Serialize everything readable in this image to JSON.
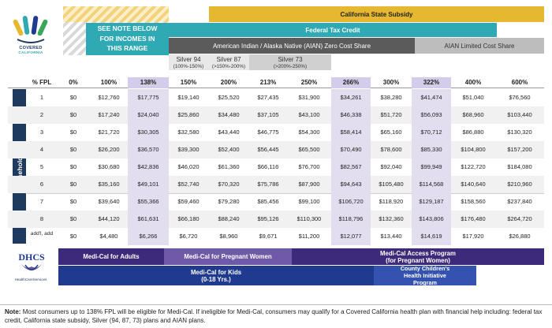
{
  "logo": {
    "wordmark_line1": "COVERED",
    "wordmark_line2": "CALIFORNIA"
  },
  "bands": {
    "california_subsidy": "California State Subsidy",
    "federal_tax_credit": "Federal Tax Credit",
    "aian_zero": "American Indian / Alaska Native (AIAN) Zero Cost Share",
    "aian_limited": "AIAN Limited Cost Share",
    "note_line1": "SEE NOTE BELOW",
    "note_line2": "FOR INCOMES IN",
    "note_line3": "THIS RANGE"
  },
  "silver": [
    {
      "label": "Silver 94",
      "range": "(100%-150%)"
    },
    {
      "label": "Silver 87",
      "range": "(>150%-200%)"
    },
    {
      "label": "Silver 73",
      "range": "(>200%-250%)"
    }
  ],
  "table": {
    "side_label": "Household Size",
    "headers": [
      "% FPL",
      "0%",
      "100%",
      "138%",
      "150%",
      "200%",
      "213%",
      "250%",
      "266%",
      "300%",
      "322%",
      "400%",
      "600%"
    ],
    "rows": [
      [
        "1",
        "$0",
        "$12,760",
        "$17,775",
        "$19,140",
        "$25,520",
        "$27,435",
        "$31,900",
        "$34,261",
        "$38,280",
        "$41,474",
        "$51,040",
        "$76,560"
      ],
      [
        "2",
        "$0",
        "$17,240",
        "$24,040",
        "$25,860",
        "$34,480",
        "$37,105",
        "$43,100",
        "$46,338",
        "$51,720",
        "$56,093",
        "$68,960",
        "$103,440"
      ],
      [
        "3",
        "$0",
        "$21,720",
        "$30,305",
        "$32,580",
        "$43,440",
        "$46,775",
        "$54,300",
        "$58,414",
        "$65,160",
        "$70,712",
        "$86,880",
        "$130,320"
      ],
      [
        "4",
        "$0",
        "$26,200",
        "$36,570",
        "$39,300",
        "$52,400",
        "$56,445",
        "$65,500",
        "$70,490",
        "$78,600",
        "$85,330",
        "$104,800",
        "$157,200"
      ],
      [
        "5",
        "$0",
        "$30,680",
        "$42,836",
        "$46,020",
        "$61,360",
        "$66,116",
        "$76,700",
        "$82,567",
        "$92,040",
        "$99,949",
        "$122,720",
        "$184,080"
      ],
      [
        "6",
        "$0",
        "$35,160",
        "$49,101",
        "$52,740",
        "$70,320",
        "$75,786",
        "$87,900",
        "$94,643",
        "$105,480",
        "$114,568",
        "$140,640",
        "$210,960"
      ],
      [
        "7",
        "$0",
        "$39,640",
        "$55,366",
        "$59,460",
        "$79,280",
        "$85,456",
        "$99,100",
        "$106,720",
        "$118,920",
        "$129,187",
        "$158,560",
        "$237,840"
      ],
      [
        "8",
        "$0",
        "$44,120",
        "$61,631",
        "$66,180",
        "$88,240",
        "$95,126",
        "$110,300",
        "$118,796",
        "$132,360",
        "$143,806",
        "$176,480",
        "$264,720"
      ],
      [
        "add'l, add",
        "$0",
        "$4,480",
        "$6,266",
        "$6,720",
        "$8,960",
        "$9,671",
        "$11,200",
        "$12,077",
        "$13,440",
        "$14,619",
        "$17,920",
        "$26,880"
      ]
    ]
  },
  "programs": {
    "dhcs_logo": "DHCS",
    "dhcs_caption": "HealthCareServices",
    "adults": "Medi-Cal for Adults",
    "pregnant": "Medi-Cal for Pregnant Women",
    "access_line1": "Medi-Cal Access Program",
    "access_line2": "(for Pregnant Women)",
    "kids_line1": "Medi-Cal for Kids",
    "kids_line2": "(0-18 Yrs.)",
    "chip_line1": "County Children's",
    "chip_line2": "Health Initiative",
    "chip_line3": "Program"
  },
  "note": {
    "label": "Note:",
    "text": "Most consumers up to 138% FPL will be eligible for Medi-Cal. If ineligible for Medi-Cal, consumers may qualify for a Covered California health plan with financial help including: federal tax credit, California state subsidy, Silver (94, 87, 73) plans and AIAN plans."
  },
  "colors": {
    "yellow": "#e6b830",
    "teal": "#2fa9b4",
    "dark_gray": "#5b5b5b",
    "light_gray": "#bdbdbd",
    "navy": "#1f3a5f",
    "purple": "#3d2a7a",
    "lavender": "#d3cdea",
    "blue": "#1f3a8f"
  }
}
